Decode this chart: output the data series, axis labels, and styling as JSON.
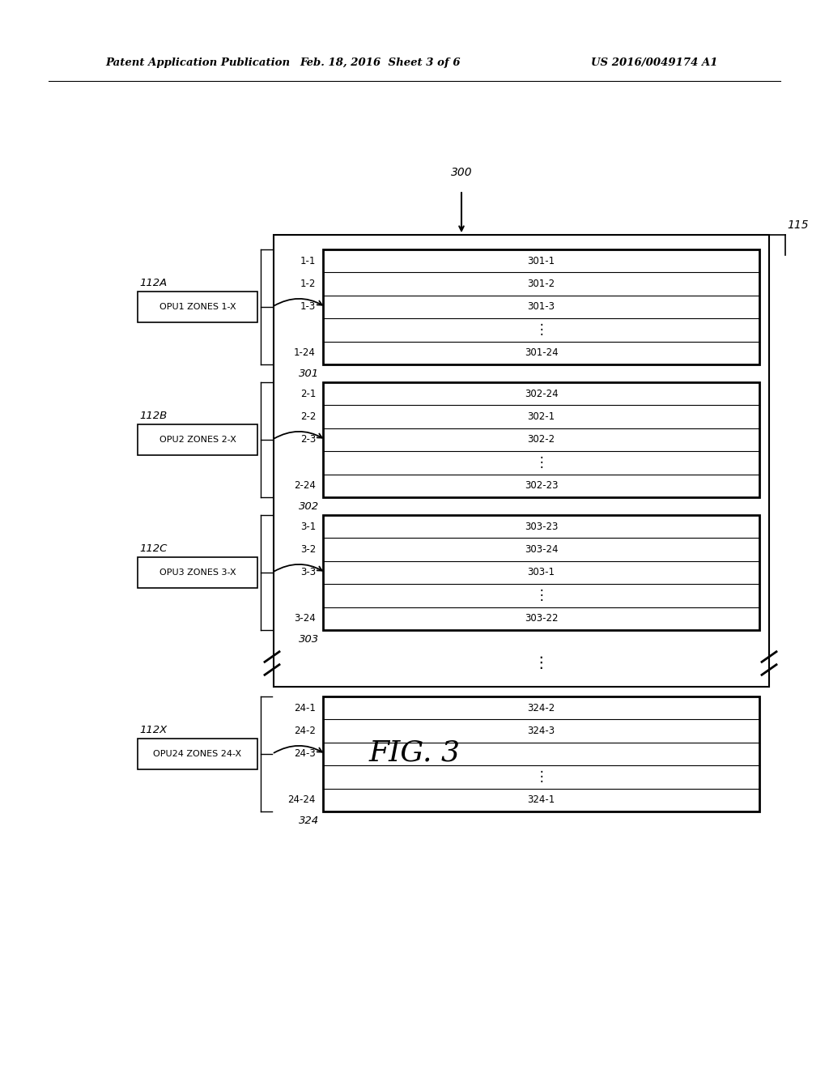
{
  "bg_color": "#ffffff",
  "header_text": "Patent Application Publication",
  "header_date": "Feb. 18, 2016  Sheet 3 of 6",
  "header_patent": "US 2016/0049174 A1",
  "fig_label": "FIG. 3",
  "outer_box_label": "115",
  "arrow_label": "300",
  "groups": [
    {
      "opu_label": "112A",
      "opu_box": "OPU1 ZONES 1-X",
      "group_num": "301",
      "rows": [
        {
          "left": "1-1",
          "right": "301-1"
        },
        {
          "left": "1-2",
          "right": "301-2"
        },
        {
          "left": "1-3",
          "right": "301-3"
        },
        {
          "left": "",
          "right": "⋮"
        },
        {
          "left": "1-24",
          "right": "301-24"
        }
      ]
    },
    {
      "opu_label": "112B",
      "opu_box": "OPU2 ZONES 2-X",
      "group_num": "302",
      "rows": [
        {
          "left": "2-1",
          "right": "302-24"
        },
        {
          "left": "2-2",
          "right": "302-1"
        },
        {
          "left": "2-3",
          "right": "302-2"
        },
        {
          "left": "",
          "right": "⋮"
        },
        {
          "left": "2-24",
          "right": "302-23"
        }
      ]
    },
    {
      "opu_label": "112C",
      "opu_box": "OPU3 ZONES 3-X",
      "group_num": "303",
      "rows": [
        {
          "left": "3-1",
          "right": "303-23"
        },
        {
          "left": "3-2",
          "right": "303-24"
        },
        {
          "left": "3-3",
          "right": "303-1"
        },
        {
          "left": "",
          "right": "⋮"
        },
        {
          "left": "3-24",
          "right": "303-22"
        }
      ]
    },
    {
      "opu_label": "112X",
      "opu_box": "OPU24 ZONES 24-X",
      "group_num": "324",
      "rows": [
        {
          "left": "24-1",
          "right": "324-2"
        },
        {
          "left": "24-2",
          "right": "324-3"
        },
        {
          "left": "24-3",
          "right": ""
        },
        {
          "left": "",
          "right": "⋮"
        },
        {
          "left": "24-24",
          "right": "324-1"
        }
      ]
    }
  ]
}
